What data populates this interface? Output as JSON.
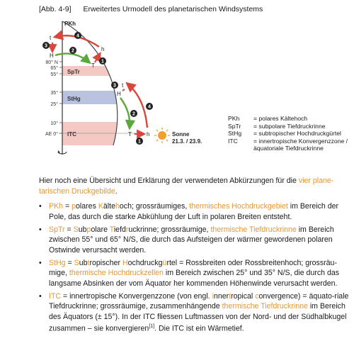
{
  "caption": {
    "number": "[Abb. 4-9]",
    "title": "Erweitertes Urmodell des planetarischen Windsystems"
  },
  "figure": {
    "pkh_label": "PKh",
    "lat_labels": [
      "80° N",
      "65°",
      "55°",
      "35°",
      "25°",
      "10°",
      "AE 0°"
    ],
    "zone_labels": {
      "sptr": "SpTr",
      "sthg": "StHg",
      "itc": "ITC"
    },
    "letters": {
      "t": "t",
      "H": "H",
      "T": "T",
      "h": "h"
    },
    "step_numbers": [
      "1",
      "2",
      "3",
      "4"
    ],
    "sun_label_1": "Sonne",
    "sun_label_2": "21.3. / 23.9.",
    "colors": {
      "red": "#d9473c",
      "green": "#5aa839",
      "sptr_band": "#f4c8c3",
      "sthg_band": "#b9c3e0",
      "itc_band": "#f4c8c3",
      "sun": "#f0a030"
    }
  },
  "legend": [
    {
      "key": "PKh",
      "value": "= polares Kältehoch"
    },
    {
      "key": "SpTr",
      "value": "= subpolare Tiefdruckrinne"
    },
    {
      "key": "StHg",
      "value": "= subtropischer Hochdruckgürtel"
    },
    {
      "key": "ITC",
      "value": "= innertropische Konvergenzzone /"
    },
    {
      "key": "",
      "value": "äquatoriale Tiefdruckrinne"
    }
  ],
  "intro": {
    "text": "Hier noch eine Übersicht und Erklärung der verwendeten Abkürzungen für die ",
    "highlight_1": "vier plane-",
    "highlight_2": "tarischen Druckgebilde",
    "end": "."
  },
  "bullets": {
    "marker": "•",
    "b1": {
      "abbr": "PKh",
      "eq": " = ",
      "p1": "p",
      "p2": "olares ",
      "p3": "K",
      "p4": "älte",
      "p5": "h",
      "p6": "och; grossräumiges, ",
      "hl": "thermisches Hochdruckgebiet",
      "rest": " im Bereich der Pole, das durch die starke Abkühlung der Luft in polaren Breiten entsteht."
    },
    "b2": {
      "abbr": "SpTr",
      "eq": " = ",
      "p1": "S",
      "p2": "ub",
      "p3": "p",
      "p4": "olare ",
      "p5": "T",
      "p6": "iefd",
      "p7": "r",
      "p8": "uckrinne; grossräumige, ",
      "hl": "thermische Tiefdruckrinne",
      "rest": " im Bereich zwischen 55° und 65° N/S, die durch das Aufsteigen der wärmer gewordenen polaren Ostwinde verursacht werden."
    },
    "b3": {
      "abbr": "StHg",
      "eq": " = ",
      "p1": "S",
      "p2": "ub",
      "p3": "t",
      "p4": "ropischer ",
      "p5": "H",
      "p6": "ochdruckg",
      "p7": "ü",
      "p8": "rtel = Rossbreiten oder Rossbreitenhoch; grossräu-mige, ",
      "hl": "thermische Hochdruckzellen",
      "rest": " im Bereich zwischen 25° und 35° N/S, die durch das langsame Absinken der vom Äquator her kommenden Höhenwinde verursacht werden."
    },
    "b4": {
      "abbr": "ITC",
      "p0": " = innertropische Konvergenzzone (von engl. ",
      "p1": "i",
      "p2": "nner",
      "p3": "t",
      "p4": "ropical ",
      "p5": "c",
      "p6": "onvergence) = äquato-riale Tiefdruckrinne; grossräumige, zusammenhängende ",
      "hl": "thermische Tiefdruckrinne",
      "rest": " im Bereich des Äquators (± 15°). In der ITC fliessen Luftmassen von der Nord- und der Südhalbkugel zusammen – sie konvergieren",
      "sup": "[1]",
      "end": ". Die ITC ist ein Wärmetief."
    }
  }
}
